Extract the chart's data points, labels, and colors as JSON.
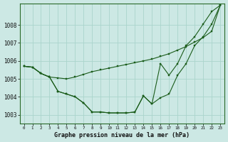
{
  "title": "Graphe pression niveau de la mer (hPa)",
  "background_color": "#cce8e4",
  "grid_color": "#aad4cc",
  "line_color": "#1a5c1a",
  "xlim": [
    -0.5,
    23.5
  ],
  "ylim": [
    1002.5,
    1009.2
  ],
  "yticks": [
    1003,
    1004,
    1005,
    1006,
    1007,
    1008
  ],
  "xticks": [
    0,
    1,
    2,
    3,
    4,
    5,
    6,
    7,
    8,
    9,
    10,
    11,
    12,
    13,
    14,
    15,
    16,
    17,
    18,
    19,
    20,
    21,
    22,
    23
  ],
  "series": [
    [
      1005.7,
      1005.65,
      1005.3,
      1005.1,
      1005.05,
      1005.0,
      1005.1,
      1005.25,
      1005.4,
      1005.5,
      1005.6,
      1005.7,
      1005.8,
      1005.9,
      1006.0,
      1006.1,
      1006.25,
      1006.4,
      1006.6,
      1006.8,
      1007.05,
      1007.3,
      1007.65,
      1009.1
    ],
    [
      1005.7,
      1005.65,
      1005.3,
      1005.1,
      1004.3,
      1004.15,
      1004.0,
      1003.65,
      1003.15,
      1003.15,
      1003.1,
      1003.1,
      1003.1,
      1003.15,
      1004.05,
      1003.6,
      1003.95,
      1004.15,
      1005.2,
      1005.85,
      1006.85,
      1007.35,
      1008.05,
      1009.1
    ],
    [
      1005.7,
      1005.65,
      1005.3,
      1005.1,
      1004.3,
      1004.15,
      1004.0,
      1003.65,
      1003.15,
      1003.15,
      1003.1,
      1003.1,
      1003.1,
      1003.15,
      1004.05,
      1003.6,
      1005.85,
      1005.2,
      1005.85,
      1006.85,
      1007.35,
      1008.05,
      1008.75,
      1009.1
    ]
  ]
}
